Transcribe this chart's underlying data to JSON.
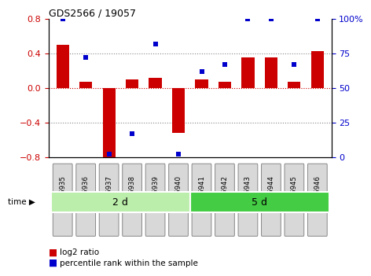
{
  "title": "GDS2566 / 19057",
  "samples": [
    "GSM96935",
    "GSM96936",
    "GSM96937",
    "GSM96938",
    "GSM96939",
    "GSM96940",
    "GSM96941",
    "GSM96942",
    "GSM96943",
    "GSM96944",
    "GSM96945",
    "GSM96946"
  ],
  "log2_ratio": [
    0.5,
    0.07,
    -0.8,
    0.1,
    0.12,
    -0.52,
    0.1,
    0.07,
    0.35,
    0.35,
    0.07,
    0.43
  ],
  "percentile_rank": [
    100,
    72,
    2,
    17,
    82,
    2,
    62,
    67,
    100,
    100,
    67,
    100
  ],
  "group1_label": "2 d",
  "group2_label": "5 d",
  "group1_count": 6,
  "group2_count": 6,
  "bar_color": "#cc0000",
  "dot_color": "#0000cc",
  "ylim_left": [
    -0.8,
    0.8
  ],
  "ylim_right": [
    0,
    100
  ],
  "yticks_left": [
    -0.8,
    -0.4,
    0.0,
    0.4,
    0.8
  ],
  "yticks_right": [
    0,
    25,
    50,
    75,
    100
  ],
  "group1_color": "#bbeeaa",
  "group2_color": "#44cc44",
  "sample_box_color": "#d8d8d8",
  "sample_box_edge": "#888888",
  "bg_color": "#ffffff",
  "legend_bar_label": "log2 ratio",
  "legend_dot_label": "percentile rank within the sample",
  "time_label": "time"
}
